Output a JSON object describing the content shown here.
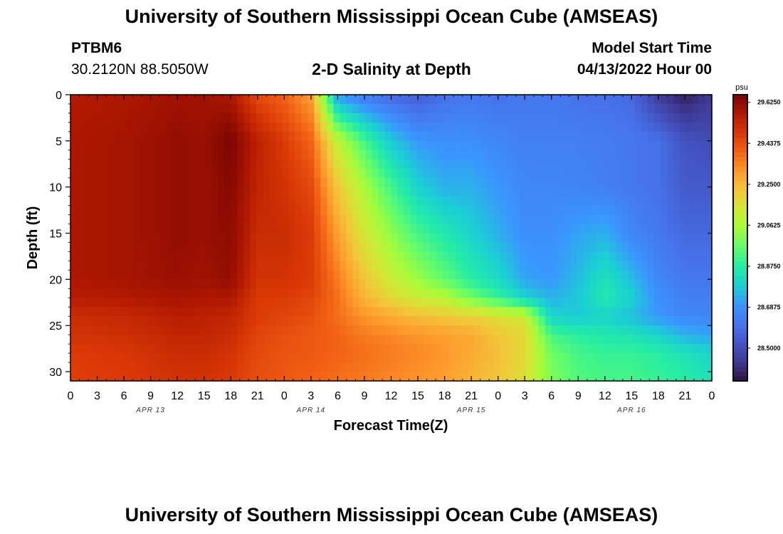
{
  "header": {
    "title": "University of Southern Mississippi Ocean Cube (AMSEAS)",
    "station_id": "PTBM6",
    "station_coords": "30.2120N  88.5050W",
    "plot_title": "2-D Salinity at Depth",
    "model_start_label": "Model Start Time",
    "model_start_value": "04/13/2022 Hour 00"
  },
  "footer": {
    "title": "University of Southern Mississippi Ocean Cube (AMSEAS)"
  },
  "chart_data": {
    "type": "heatmap",
    "title": "2-D Salinity at Depth",
    "xlabel": "Forecast Time(Z)",
    "ylabel": "Depth (ft)",
    "x_range_hours": [
      0,
      72
    ],
    "y_range_ft": [
      0,
      31
    ],
    "x_tick_step_hours": 3,
    "x_tick_labels": [
      "0",
      "3",
      "6",
      "9",
      "12",
      "15",
      "18",
      "21",
      "0",
      "3",
      "6",
      "9",
      "12",
      "15",
      "18",
      "21",
      "0",
      "3",
      "6",
      "9",
      "12",
      "15",
      "18",
      "21",
      "0"
    ],
    "y_ticks": [
      0,
      5,
      10,
      15,
      20,
      25,
      30
    ],
    "date_labels": [
      {
        "text": "APR 13",
        "hour": 9
      },
      {
        "text": "APR 14",
        "hour": 27
      },
      {
        "text": "APR 15",
        "hour": 45
      },
      {
        "text": "APR 16",
        "hour": 63
      }
    ],
    "colorbar": {
      "unit": "psu",
      "min": 28.35,
      "max": 29.66,
      "tick_labels": [
        "29.6250",
        "29.4375",
        "29.2500",
        "29.0625",
        "28.8750",
        "28.6875",
        "28.5000"
      ],
      "tick_values": [
        29.625,
        29.4375,
        29.25,
        29.0625,
        28.875,
        28.6875,
        28.5
      ],
      "colormap": [
        "#30123b",
        "#3e3891",
        "#4454c4",
        "#4675ed",
        "#3a96fe",
        "#1bcfd4",
        "#24eca6",
        "#61fc6c",
        "#a4fc3b",
        "#d1e834",
        "#f3c63a",
        "#fe9b2d",
        "#f36315",
        "#d93806",
        "#b11901",
        "#7a0403"
      ]
    },
    "hour_columns": [
      0,
      6,
      12,
      15,
      18,
      21,
      24,
      27,
      30,
      33,
      36,
      39,
      42,
      45,
      48,
      51,
      54,
      57,
      60,
      63,
      66,
      69,
      72
    ],
    "depth_rows_ft": [
      0,
      5,
      10,
      15,
      20,
      22,
      24,
      26,
      28,
      31
    ],
    "salinity_psu": [
      [
        29.57,
        29.58,
        29.6,
        29.6,
        29.58,
        29.45,
        29.4,
        29.3,
        28.7,
        28.62,
        28.58,
        28.55,
        28.6,
        28.62,
        28.6,
        28.62,
        28.62,
        28.6,
        28.6,
        28.58,
        28.45,
        28.38,
        28.45
      ],
      [
        29.58,
        29.59,
        29.62,
        29.61,
        29.66,
        29.55,
        29.48,
        29.4,
        29.1,
        28.92,
        28.78,
        28.7,
        28.68,
        28.68,
        28.66,
        28.64,
        28.64,
        28.64,
        28.63,
        28.62,
        28.6,
        28.52,
        28.5
      ],
      [
        29.58,
        29.59,
        29.62,
        29.61,
        29.64,
        29.54,
        29.5,
        29.45,
        29.22,
        29.06,
        28.92,
        28.8,
        28.74,
        28.74,
        28.7,
        28.66,
        28.66,
        28.65,
        28.64,
        28.62,
        28.6,
        28.54,
        28.54
      ],
      [
        29.58,
        29.59,
        29.62,
        29.61,
        29.63,
        29.52,
        29.52,
        29.48,
        29.3,
        29.14,
        29.02,
        28.92,
        28.86,
        28.8,
        28.74,
        28.68,
        28.68,
        28.72,
        28.74,
        28.66,
        28.62,
        28.58,
        28.58
      ],
      [
        29.58,
        29.59,
        29.61,
        29.6,
        29.62,
        29.5,
        29.5,
        29.48,
        29.36,
        29.22,
        29.12,
        29.04,
        28.96,
        28.88,
        28.82,
        28.72,
        28.7,
        28.76,
        28.84,
        28.76,
        28.66,
        28.62,
        28.62
      ],
      [
        29.56,
        29.57,
        29.59,
        29.58,
        29.58,
        29.48,
        29.48,
        29.46,
        29.38,
        29.26,
        29.18,
        29.12,
        29.08,
        28.98,
        28.9,
        28.8,
        28.74,
        28.78,
        28.86,
        28.8,
        28.68,
        28.64,
        28.64
      ],
      [
        29.52,
        29.53,
        29.56,
        29.55,
        29.54,
        29.48,
        29.46,
        29.44,
        29.38,
        29.32,
        29.28,
        29.24,
        29.22,
        29.2,
        29.16,
        29.12,
        28.8,
        28.78,
        28.8,
        28.76,
        28.7,
        28.66,
        28.66
      ],
      [
        29.5,
        29.51,
        29.54,
        29.54,
        29.52,
        29.46,
        29.44,
        29.42,
        29.4,
        29.36,
        29.34,
        29.32,
        29.3,
        29.28,
        29.22,
        29.18,
        28.92,
        28.88,
        28.86,
        28.84,
        28.8,
        28.74,
        28.72
      ],
      [
        29.48,
        29.49,
        29.52,
        29.52,
        29.5,
        29.45,
        29.43,
        29.42,
        29.4,
        29.38,
        29.36,
        29.34,
        29.32,
        29.28,
        29.24,
        29.18,
        28.98,
        28.92,
        28.9,
        28.9,
        28.88,
        28.84,
        28.8
      ],
      [
        29.47,
        29.48,
        29.5,
        29.5,
        29.48,
        29.44,
        29.42,
        29.4,
        29.38,
        29.36,
        29.34,
        29.32,
        29.3,
        29.26,
        29.22,
        29.16,
        29.0,
        28.94,
        28.92,
        28.92,
        28.9,
        28.88,
        28.84
      ]
    ]
  }
}
